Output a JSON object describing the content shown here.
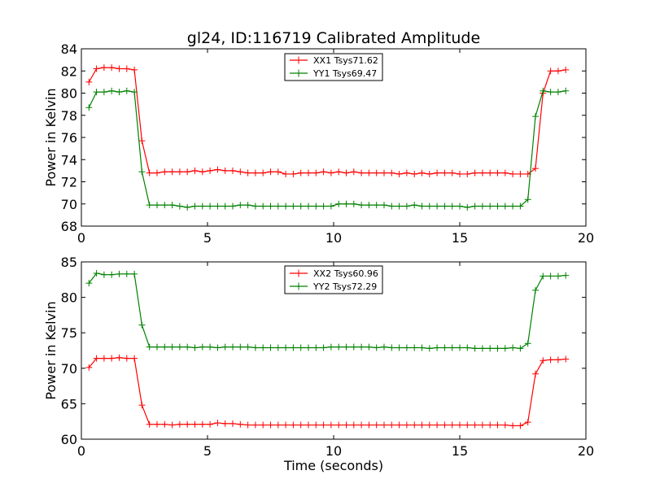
{
  "chart_data": [
    {
      "type": "line",
      "title": "gl24, ID:116719 Calibrated Amplitude",
      "xlabel": "",
      "ylabel": "Power in Kelvin",
      "xlim": [
        0,
        20
      ],
      "ylim": [
        68,
        84
      ],
      "xticks": [
        "0",
        "5",
        "10",
        "15",
        "20"
      ],
      "yticks": [
        "68",
        "70",
        "72",
        "74",
        "76",
        "78",
        "80",
        "82",
        "84"
      ],
      "legend": "upper-center",
      "grid": false,
      "x": [
        0.3,
        0.6,
        0.9,
        1.2,
        1.5,
        1.8,
        2.1,
        2.4,
        2.7,
        3.0,
        3.3,
        3.6,
        3.9,
        4.2,
        4.5,
        4.8,
        5.1,
        5.4,
        5.7,
        6.0,
        6.3,
        6.6,
        6.9,
        7.2,
        7.5,
        7.8,
        8.1,
        8.4,
        8.7,
        9.0,
        9.3,
        9.6,
        9.9,
        10.2,
        10.5,
        10.8,
        11.1,
        11.4,
        11.7,
        12.0,
        12.3,
        12.6,
        12.9,
        13.2,
        13.5,
        13.8,
        14.1,
        14.4,
        14.7,
        15.0,
        15.3,
        15.6,
        15.9,
        16.2,
        16.5,
        16.8,
        17.1,
        17.4,
        17.7,
        18.0,
        18.3,
        18.6,
        18.9,
        19.2
      ],
      "series": [
        {
          "name": "XX1 Tsys71.62",
          "color": "#ff0000",
          "values": [
            81.0,
            82.2,
            82.3,
            82.3,
            82.2,
            82.2,
            82.1,
            75.7,
            72.8,
            72.8,
            72.9,
            72.9,
            72.9,
            72.9,
            73.0,
            72.9,
            73.0,
            73.1,
            73.0,
            73.0,
            72.9,
            72.8,
            72.8,
            72.8,
            72.9,
            72.9,
            72.7,
            72.7,
            72.8,
            72.8,
            72.8,
            72.9,
            72.8,
            72.9,
            72.8,
            72.9,
            72.8,
            72.8,
            72.8,
            72.8,
            72.8,
            72.7,
            72.8,
            72.7,
            72.8,
            72.7,
            72.8,
            72.8,
            72.8,
            72.7,
            72.7,
            72.8,
            72.8,
            72.8,
            72.8,
            72.8,
            72.7,
            72.7,
            72.7,
            73.2,
            80.0,
            82.0,
            82.0,
            82.1
          ]
        },
        {
          "name": "YY1 Tsys69.47",
          "color": "#008000",
          "values": [
            78.7,
            80.1,
            80.1,
            80.2,
            80.1,
            80.2,
            80.1,
            72.9,
            69.9,
            69.9,
            69.9,
            69.9,
            69.8,
            69.7,
            69.8,
            69.8,
            69.8,
            69.8,
            69.8,
            69.8,
            69.9,
            69.9,
            69.8,
            69.8,
            69.8,
            69.8,
            69.8,
            69.8,
            69.8,
            69.8,
            69.8,
            69.8,
            69.8,
            70.0,
            70.0,
            70.0,
            69.9,
            69.9,
            69.9,
            69.9,
            69.8,
            69.8,
            69.8,
            69.9,
            69.8,
            69.8,
            69.8,
            69.8,
            69.8,
            69.8,
            69.7,
            69.8,
            69.8,
            69.8,
            69.8,
            69.8,
            69.8,
            69.8,
            70.4,
            77.9,
            80.2,
            80.1,
            80.1,
            80.2
          ]
        }
      ]
    },
    {
      "type": "line",
      "title": "",
      "xlabel": "Time (seconds)",
      "ylabel": "Power in Kelvin",
      "xlim": [
        0,
        20
      ],
      "ylim": [
        60,
        85
      ],
      "xticks": [
        "0",
        "5",
        "10",
        "15",
        "20"
      ],
      "yticks": [
        "60",
        "65",
        "70",
        "75",
        "80",
        "85"
      ],
      "legend": "upper-center",
      "grid": false,
      "x": [
        0.3,
        0.6,
        0.9,
        1.2,
        1.5,
        1.8,
        2.1,
        2.4,
        2.7,
        3.0,
        3.3,
        3.6,
        3.9,
        4.2,
        4.5,
        4.8,
        5.1,
        5.4,
        5.7,
        6.0,
        6.3,
        6.6,
        6.9,
        7.2,
        7.5,
        7.8,
        8.1,
        8.4,
        8.7,
        9.0,
        9.3,
        9.6,
        9.9,
        10.2,
        10.5,
        10.8,
        11.1,
        11.4,
        11.7,
        12.0,
        12.3,
        12.6,
        12.9,
        13.2,
        13.5,
        13.8,
        14.1,
        14.4,
        14.7,
        15.0,
        15.3,
        15.6,
        15.9,
        16.2,
        16.5,
        16.8,
        17.1,
        17.4,
        17.7,
        18.0,
        18.3,
        18.6,
        18.9,
        19.2
      ],
      "series": [
        {
          "name": "XX2 Tsys60.96",
          "color": "#ff0000",
          "values": [
            70.1,
            71.4,
            71.4,
            71.4,
            71.5,
            71.4,
            71.4,
            64.8,
            62.1,
            62.1,
            62.1,
            62.0,
            62.1,
            62.1,
            62.1,
            62.1,
            62.1,
            62.3,
            62.2,
            62.2,
            62.1,
            62.0,
            62.0,
            62.0,
            62.0,
            62.0,
            62.0,
            62.0,
            62.0,
            62.0,
            62.0,
            62.0,
            62.0,
            62.0,
            62.0,
            62.0,
            62.0,
            62.0,
            62.0,
            62.0,
            62.0,
            62.0,
            62.0,
            62.0,
            62.0,
            62.0,
            62.0,
            62.0,
            62.0,
            62.0,
            62.0,
            62.0,
            62.0,
            62.0,
            62.0,
            62.0,
            61.9,
            61.9,
            62.4,
            69.2,
            71.1,
            71.2,
            71.2,
            71.3
          ]
        },
        {
          "name": "YY2 Tsys72.29",
          "color": "#008000",
          "values": [
            82.0,
            83.4,
            83.2,
            83.2,
            83.3,
            83.3,
            83.3,
            76.1,
            73.0,
            73.0,
            73.0,
            73.0,
            73.0,
            73.0,
            72.9,
            73.0,
            73.0,
            72.9,
            73.0,
            73.0,
            73.0,
            73.0,
            72.9,
            72.9,
            72.9,
            72.9,
            72.9,
            72.9,
            72.9,
            72.9,
            72.9,
            72.9,
            73.0,
            73.0,
            73.0,
            73.0,
            73.0,
            73.0,
            72.9,
            73.0,
            72.9,
            72.9,
            72.9,
            72.9,
            72.9,
            72.8,
            72.9,
            72.9,
            72.9,
            72.9,
            72.9,
            72.8,
            72.8,
            72.8,
            72.8,
            72.8,
            72.9,
            72.8,
            73.5,
            81.0,
            83.0,
            83.0,
            83.0,
            83.1
          ]
        }
      ]
    }
  ]
}
